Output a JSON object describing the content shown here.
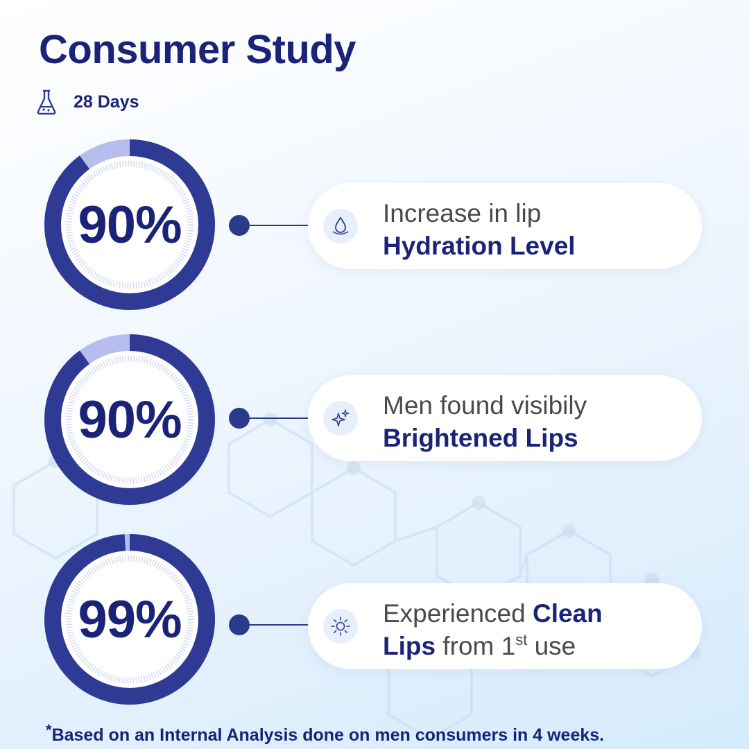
{
  "header": {
    "title": "Consumer Study",
    "duration": "28 Days",
    "duration_icon": "flask-icon"
  },
  "stats": [
    {
      "value": "90%",
      "percent": 90,
      "icon": "water-drop-icon",
      "line1": "Increase in lip",
      "line2": "Hydration Level"
    },
    {
      "value": "90%",
      "percent": 90,
      "icon": "sparkle-icon",
      "line1": "Men found visibily",
      "line2": "Brightened Lips"
    },
    {
      "value": "99%",
      "percent": 99,
      "icon": "sun-icon",
      "line1_plain": "Experienced ",
      "line1_bold": "Clean",
      "line2_bold": "Lips",
      "line2_plain": " from 1",
      "line2_sup": "st",
      "line2_tail": " use"
    }
  ],
  "footnote": {
    "asterisk": "*",
    "text": "Based on an Internal Analysis done on men consumers in 4 weeks."
  },
  "colors": {
    "primary": "#1a2377",
    "ring": "#2e3a94",
    "ring_light": "#b8bdf0",
    "text_gray": "#4a4a4a",
    "card": "#ffffff"
  }
}
